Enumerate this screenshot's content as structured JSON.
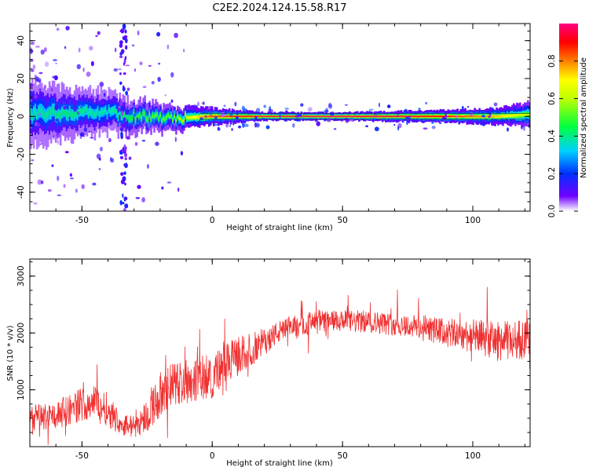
{
  "title": "C2E2.2024.124.15.58.R17",
  "chart_data": [
    {
      "type": "heatmap",
      "xlabel": "Height of straight line (km)",
      "ylabel": "Frequency (Hz)",
      "xlim": [
        -70,
        122
      ],
      "ylim": [
        -50,
        49
      ],
      "xticks": [
        -50,
        0,
        50,
        100
      ],
      "yticks": [
        40,
        20,
        0,
        -20,
        -40
      ],
      "colorbar": {
        "label": "Normalized spectral amplitude",
        "range": [
          0,
          1
        ],
        "ticks": [
          "0.0",
          "0.2",
          "0.4",
          "0.6",
          "0.8"
        ],
        "tick_values": [
          0,
          0.2,
          0.4,
          0.6,
          0.8
        ],
        "colormap": [
          "#ffffff",
          "#6000ff",
          "#0030ff",
          "#00d0ff",
          "#00ff40",
          "#c0ff00",
          "#ffff00",
          "#ff8000",
          "#ff0000",
          "#ff0080"
        ]
      },
      "ridge": {
        "description_points": [
          {
            "x": -70,
            "center_hz": 1,
            "spread_hz": 8,
            "amplitude": 0.35
          },
          {
            "x": -55,
            "center_hz": 2,
            "spread_hz": 6,
            "amplitude": 0.4
          },
          {
            "x": -40,
            "center_hz": 2,
            "spread_hz": 5,
            "amplitude": 0.35
          },
          {
            "x": -30,
            "center_hz": 0,
            "spread_hz": 4,
            "amplitude": 0.45
          },
          {
            "x": -15,
            "center_hz": -1,
            "spread_hz": 3,
            "amplitude": 0.5
          },
          {
            "x": 0,
            "center_hz": 0,
            "spread_hz": 2,
            "amplitude": 0.8
          },
          {
            "x": 20,
            "center_hz": 0,
            "spread_hz": 1,
            "amplitude": 0.9
          },
          {
            "x": 50,
            "center_hz": 0,
            "spread_hz": 1,
            "amplitude": 0.95
          },
          {
            "x": 90,
            "center_hz": 0,
            "spread_hz": 1.5,
            "amplitude": 0.85
          },
          {
            "x": 110,
            "center_hz": 0,
            "spread_hz": 2,
            "amplitude": 0.7
          },
          {
            "x": 122,
            "center_hz": 1,
            "spread_hz": 3,
            "amplitude": 0.55
          }
        ]
      },
      "vertical_streak_x": -34
    },
    {
      "type": "line",
      "xlabel": "Height of straight line (km)",
      "ylabel": "SNR (10 * v/v)",
      "xlim": [
        -70,
        122
      ],
      "ylim": [
        0,
        3300
      ],
      "xticks": [
        -50,
        0,
        50,
        100
      ],
      "yticks": [
        1000,
        2000,
        3000
      ],
      "line_color": "#f03030",
      "x": [
        -70,
        -60,
        -50,
        -45,
        -40,
        -35,
        -30,
        -25,
        -20,
        -15,
        -10,
        -5,
        0,
        5,
        10,
        15,
        20,
        25,
        30,
        35,
        40,
        50,
        60,
        70,
        80,
        90,
        100,
        110,
        122
      ],
      "y": [
        500,
        550,
        750,
        800,
        650,
        400,
        350,
        550,
        900,
        1100,
        1150,
        1200,
        1250,
        1450,
        1600,
        1700,
        1850,
        2000,
        2100,
        2150,
        2200,
        2200,
        2200,
        2150,
        2100,
        2000,
        1950,
        1850,
        1900
      ],
      "noise_amplitude": [
        250,
        250,
        300,
        300,
        300,
        200,
        200,
        300,
        400,
        400,
        400,
        400,
        400,
        350,
        350,
        300,
        250,
        200,
        200,
        200,
        200,
        200,
        200,
        200,
        220,
        250,
        300,
        350,
        350
      ]
    }
  ]
}
